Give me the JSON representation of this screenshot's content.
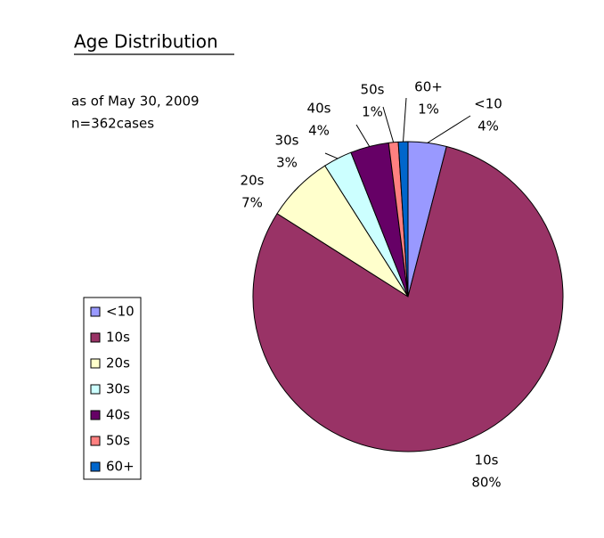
{
  "chart_data": {
    "type": "pie",
    "title": "Age Distribution",
    "subtitle": [
      "as of May 30, 2009",
      "n=362cases"
    ],
    "categories": [
      "<10",
      "10s",
      "20s",
      "30s",
      "40s",
      "50s",
      "60+"
    ],
    "values": [
      4,
      80,
      7,
      3,
      4,
      1,
      1
    ],
    "value_labels": [
      "4%",
      "80%",
      "7%",
      "3%",
      "4%",
      "1%",
      "1%"
    ],
    "colors": [
      "#9999ff",
      "#993366",
      "#ffffcc",
      "#ccffff",
      "#660066",
      "#ff8080",
      "#0066cc"
    ],
    "legend": "left"
  }
}
